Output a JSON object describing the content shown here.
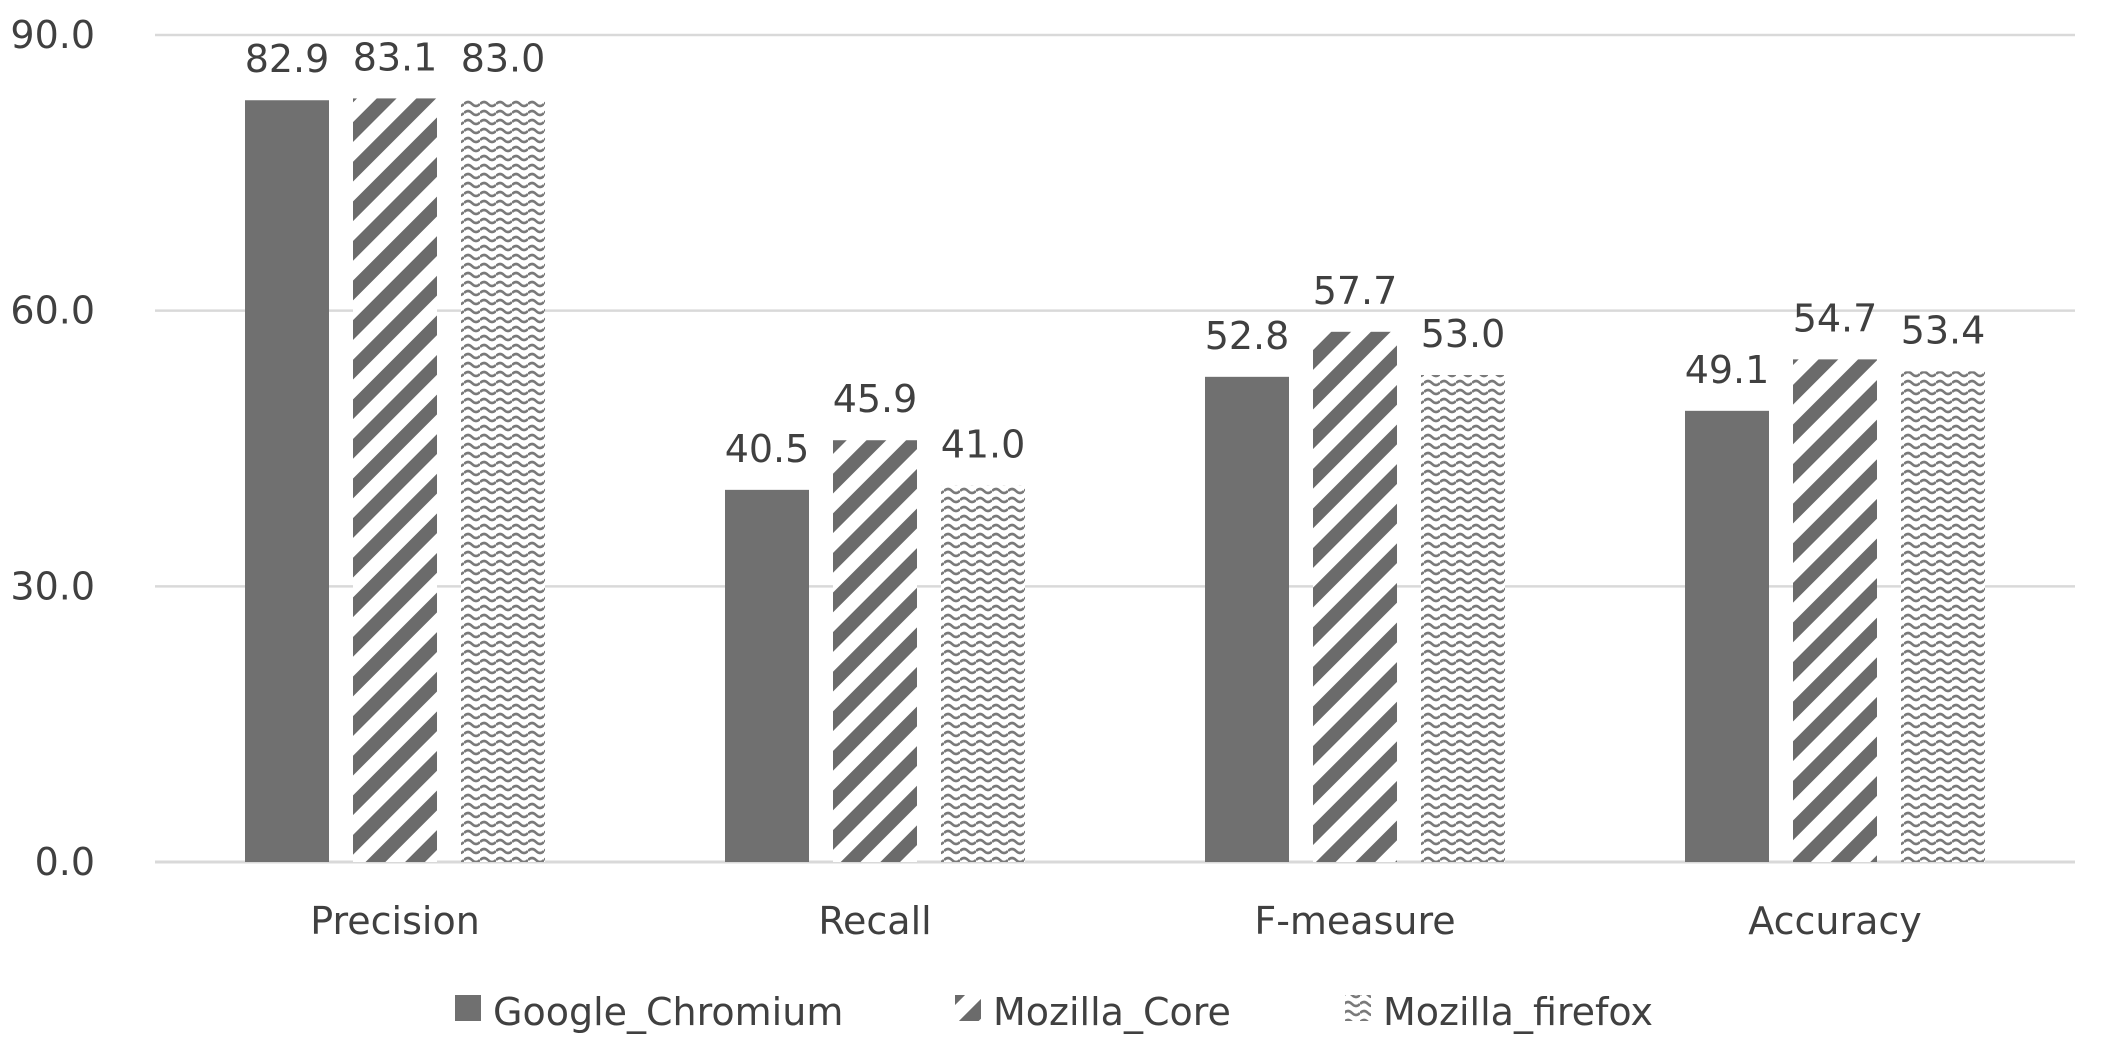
{
  "chart_data": {
    "type": "bar",
    "title": "",
    "xlabel": "",
    "ylabel": "",
    "ylim": [
      0,
      90
    ],
    "yticks": [
      0,
      30,
      60,
      90
    ],
    "ytick_labels": [
      "0.0",
      "30.0",
      "60.0",
      "90.0"
    ],
    "grid": true,
    "legend_position": "bottom",
    "categories": [
      "Precision",
      "Recall",
      "F-measure",
      "Accuracy"
    ],
    "series": [
      {
        "name": "Google_Chromium",
        "values": [
          82.9,
          40.5,
          52.8,
          49.1
        ],
        "labels": [
          "82.9",
          "40.5",
          "52.8",
          "49.1"
        ],
        "pattern": "solid",
        "color": "#707070"
      },
      {
        "name": "Mozilla_Core",
        "values": [
          83.1,
          45.9,
          57.7,
          54.7
        ],
        "labels": [
          "83.1",
          "45.9",
          "57.7",
          "54.7"
        ],
        "pattern": "diagonal-stripes",
        "color": "#6b6b6b"
      },
      {
        "name": "Mozilla_firefox",
        "values": [
          83.0,
          41.0,
          53.0,
          53.4
        ],
        "labels": [
          "83.0",
          "41.0",
          "53.0",
          "53.4"
        ],
        "pattern": "wave",
        "color": "#7a7a7a"
      }
    ]
  }
}
